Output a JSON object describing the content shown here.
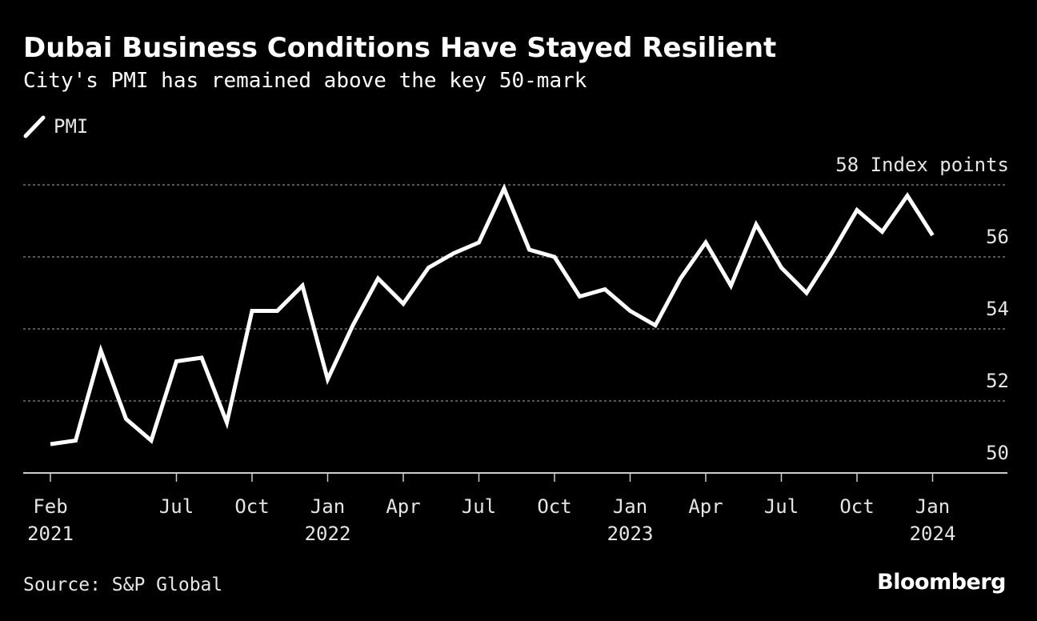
{
  "header": {
    "title": "Dubai Business Conditions Have Stayed Resilient",
    "subtitle": "City's PMI has remained above the key 50-mark"
  },
  "footer": {
    "source": "Source: S&P Global",
    "brand": "Bloomberg"
  },
  "colors": {
    "background": "#000000",
    "line": "#ffffff",
    "grid": "#8c8c8c",
    "axis": "#cccccc",
    "text": "#e6e6e6"
  },
  "chart_data": {
    "type": "line",
    "title": "Dubai Business Conditions Have Stayed Resilient",
    "subtitle": "City's PMI has remained above the key 50-mark",
    "legend": [
      "PMI"
    ],
    "legend_position": "top-left",
    "ylabel": "58 Index points",
    "unit": "Index points",
    "ylim": [
      50,
      58
    ],
    "yticks": [
      50,
      52,
      54,
      56,
      58
    ],
    "ytick_labels": [
      "50",
      "52",
      "54",
      "56",
      "58 Index points"
    ],
    "grid": true,
    "x_month_start": "2021-02",
    "x_month_end": "2024-02",
    "xticks": [
      {
        "month_index": 0,
        "label": "Feb",
        "year": "2021"
      },
      {
        "month_index": 5,
        "label": "Jul",
        "year": ""
      },
      {
        "month_index": 8,
        "label": "Oct",
        "year": ""
      },
      {
        "month_index": 11,
        "label": "Jan",
        "year": "2022"
      },
      {
        "month_index": 14,
        "label": "Apr",
        "year": ""
      },
      {
        "month_index": 17,
        "label": "Jul",
        "year": ""
      },
      {
        "month_index": 20,
        "label": "Oct",
        "year": ""
      },
      {
        "month_index": 23,
        "label": "Jan",
        "year": "2023"
      },
      {
        "month_index": 26,
        "label": "Apr",
        "year": ""
      },
      {
        "month_index": 29,
        "label": "Jul",
        "year": ""
      },
      {
        "month_index": 32,
        "label": "Oct",
        "year": ""
      },
      {
        "month_index": 35,
        "label": "Jan",
        "year": "2024"
      }
    ],
    "series": [
      {
        "name": "PMI",
        "start": "2021-02",
        "frequency": "monthly",
        "values": [
          50.8,
          50.9,
          53.4,
          51.5,
          50.9,
          53.1,
          53.2,
          51.4,
          54.5,
          54.5,
          55.2,
          52.6,
          54.1,
          55.4,
          54.7,
          55.7,
          56.1,
          56.4,
          57.9,
          56.2,
          56.0,
          54.9,
          55.1,
          54.5,
          54.1,
          55.4,
          56.4,
          55.2,
          56.9,
          55.7,
          55.0,
          56.1,
          57.3,
          56.7,
          57.7,
          56.6
        ]
      }
    ]
  }
}
